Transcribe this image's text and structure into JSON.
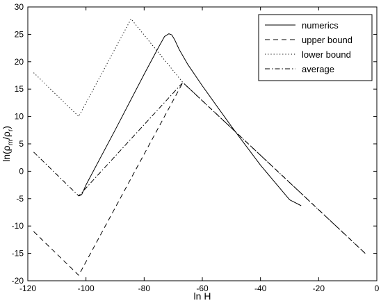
{
  "chart_data": {
    "type": "line",
    "title": "",
    "xlabel": "ln H",
    "ylabel_main": "ln(ρ",
    "ylabel_sub1": "m",
    "ylabel_mid": "/ρ",
    "ylabel_sub2": "r",
    "ylabel_end": ")",
    "xlim": [
      -120,
      0
    ],
    "ylim": [
      -20,
      30
    ],
    "xticks": [
      -120,
      -100,
      -80,
      -60,
      -40,
      -20,
      0
    ],
    "yticks": [
      -20,
      -15,
      -10,
      -5,
      0,
      5,
      10,
      15,
      20,
      25,
      30
    ],
    "grid": false,
    "legend_position": "top-right",
    "series": [
      {
        "name": "numerics",
        "style": "solid",
        "color": "#000000",
        "x": [
          -102.5,
          -101.5,
          -100,
          -90,
          -80,
          -75,
          -73,
          -71.5,
          -70.5,
          -69.5,
          -68,
          -65,
          -60,
          -50,
          -40,
          -30,
          -26
        ],
        "y": [
          -4.5,
          -4.3,
          -2.5,
          7.5,
          17.7,
          22.7,
          24.6,
          25.1,
          24.9,
          24.0,
          22.3,
          19.5,
          15.6,
          8.2,
          1.1,
          -5.2,
          -6.3
        ]
      },
      {
        "name": "upper bound",
        "style": "dashed",
        "color": "#000000",
        "x": [
          -118,
          -102.5,
          -66.7,
          -4
        ],
        "y": [
          -11,
          -19,
          16.2,
          -15
        ]
      },
      {
        "name": "lower bound",
        "style": "dotted",
        "color": "#000000",
        "x": [
          -118,
          -102.5,
          -84.5,
          -66.7
        ],
        "y": [
          18,
          10,
          27.8,
          16.2
        ]
      },
      {
        "name": "average",
        "style": "dashdot",
        "color": "#000000",
        "x": [
          -118,
          -102.5,
          -66.7,
          -4
        ],
        "y": [
          3.5,
          -4.5,
          16.2,
          -15
        ]
      }
    ]
  }
}
